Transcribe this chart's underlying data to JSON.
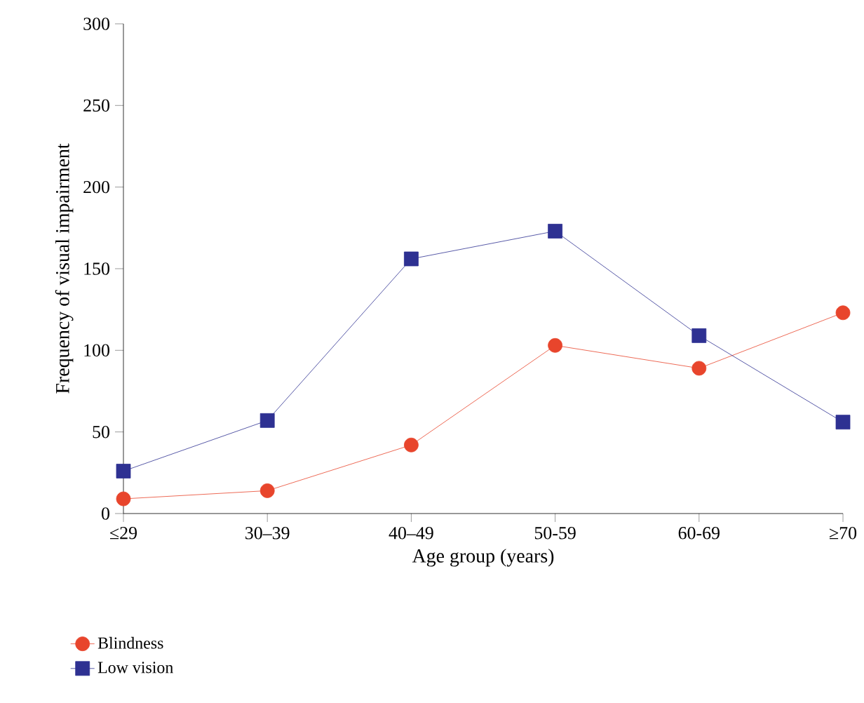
{
  "chart_data": {
    "type": "line",
    "xlabel": "Age group (years)",
    "ylabel": "Frequency of visual impairment",
    "categories": [
      "≤29",
      "30–39",
      "40–49",
      "50-59",
      "60-69",
      "≥70"
    ],
    "series": [
      {
        "name": "Blindness",
        "color": "#e8452c",
        "marker": "circle",
        "values": [
          9,
          14,
          42,
          103,
          89,
          123
        ]
      },
      {
        "name": "Low vision",
        "color": "#2e3192",
        "marker": "square",
        "values": [
          26,
          57,
          156,
          173,
          109,
          56
        ]
      }
    ],
    "ylim": [
      0,
      300
    ],
    "yticks": [
      0,
      50,
      100,
      150,
      200,
      250,
      300
    ],
    "legend": "bottom left",
    "grid": false
  }
}
